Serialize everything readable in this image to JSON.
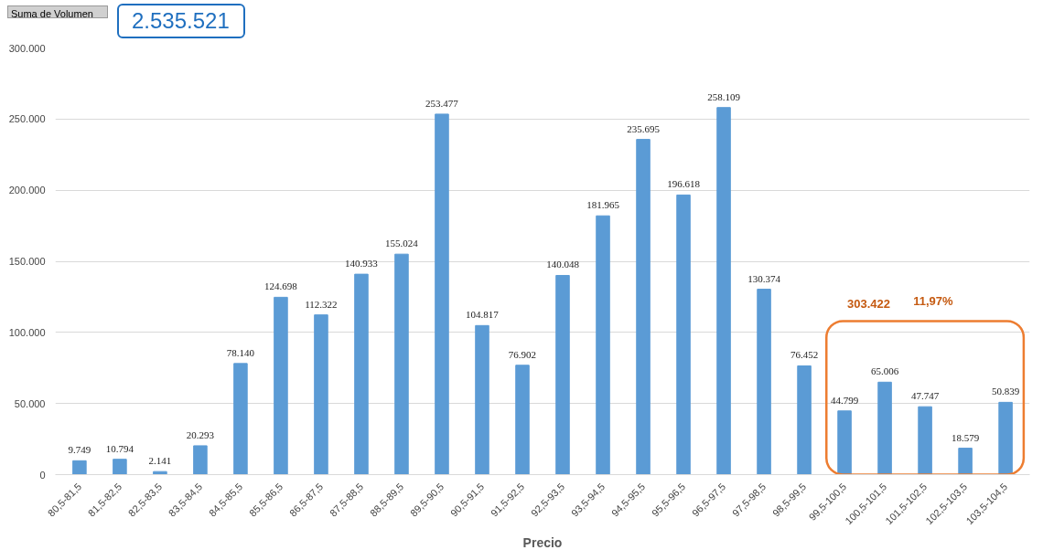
{
  "chart_data": {
    "type": "bar",
    "xlabel": "Precio",
    "categories": [
      "80,5-81,5",
      "81,5-82,5",
      "82,5-83,5",
      "83,5-84,5",
      "84,5-85,5",
      "85,5-86,5",
      "86,5-87,5",
      "87,5-88,5",
      "88,5-89,5",
      "89,5-90,5",
      "90,5-91,5",
      "91,5-92,5",
      "92,5-93,5",
      "93,5-94,5",
      "94,5-95,5",
      "95,5-96,5",
      "96,5-97,5",
      "97,5-98,5",
      "98,5-99,5",
      "99,5-100,5",
      "100,5-101,5",
      "101,5-102,5",
      "102,5-103,5",
      "103,5-104,5"
    ],
    "values": [
      9749,
      10794,
      2141,
      20293,
      78140,
      124698,
      112322,
      140933,
      155024,
      253477,
      104817,
      76902,
      140048,
      181965,
      235695,
      196618,
      258109,
      130374,
      76452,
      44799,
      65006,
      47747,
      18579,
      50839
    ],
    "value_labels": [
      "9.749",
      "10.794",
      "2.141",
      "20.293",
      "78.140",
      "124.698",
      "112.322",
      "140.933",
      "155.024",
      "253.477",
      "104.817",
      "76.902",
      "140.048",
      "181.965",
      "235.695",
      "196.618",
      "258.109",
      "130.374",
      "76.452",
      "44.799",
      "65.006",
      "47.747",
      "18.579",
      "50.839"
    ],
    "color": "#5b9bd5",
    "ylim": [
      0,
      300000
    ],
    "yticks": [
      0,
      {
        "value": 50000,
        "label": "50.000"
      },
      {
        "value": 100000,
        "label": "100.000"
      },
      {
        "value": 150000,
        "label": "150.000"
      },
      {
        "value": 200000,
        "label": "200.000"
      },
      {
        "value": 250000,
        "label": "250.000"
      },
      {
        "value": 300000,
        "label": "300.000"
      }
    ],
    "grid": "y",
    "annotations": [
      "Suma de Volumen",
      "2.535.521",
      "303.422",
      "11,97%"
    ]
  }
}
